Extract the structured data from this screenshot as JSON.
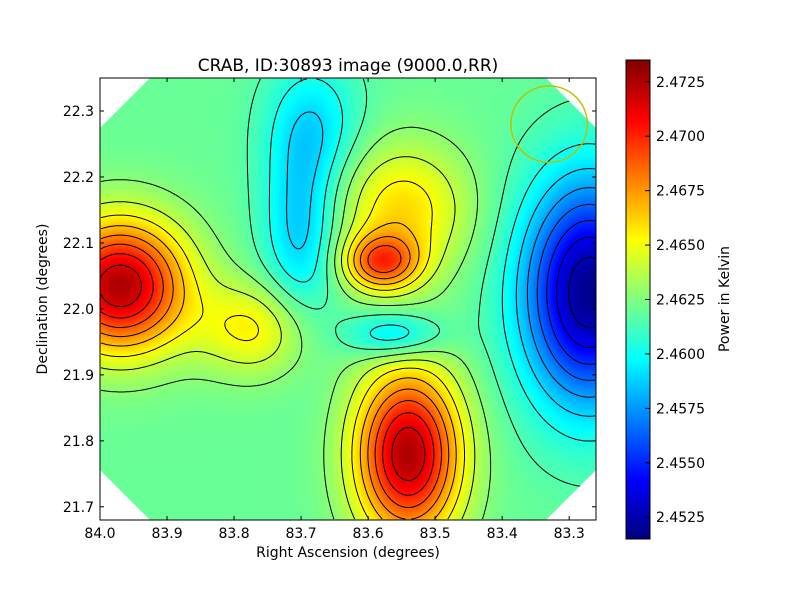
{
  "chart_data": {
    "type": "heatmap",
    "title": "CRAB, ID:30893 image (9000.0,RR)",
    "xlabel": "Right Ascension (degrees)",
    "ylabel": "Declination (degrees)",
    "xlim": [
      84.0,
      83.26
    ],
    "ylim": [
      21.68,
      22.35
    ],
    "x_ticks": [
      {
        "value": 84.0,
        "label": "84.0"
      },
      {
        "value": 83.9,
        "label": "83.9"
      },
      {
        "value": 83.8,
        "label": "83.8"
      },
      {
        "value": 83.7,
        "label": "83.7"
      },
      {
        "value": 83.6,
        "label": "83.6"
      },
      {
        "value": 83.5,
        "label": "83.5"
      },
      {
        "value": 83.4,
        "label": "83.4"
      },
      {
        "value": 83.3,
        "label": "83.3"
      }
    ],
    "y_ticks": [
      {
        "value": 21.7,
        "label": "21.7"
      },
      {
        "value": 21.8,
        "label": "21.8"
      },
      {
        "value": 21.9,
        "label": "21.9"
      },
      {
        "value": 22.0,
        "label": "22.0"
      },
      {
        "value": 22.1,
        "label": "22.1"
      },
      {
        "value": 22.2,
        "label": "22.2"
      },
      {
        "value": 22.3,
        "label": "22.3"
      }
    ],
    "colorbar": {
      "label": "Power in Kelvin",
      "colormap": "jet",
      "range": [
        2.4515,
        2.4735
      ],
      "ticks": [
        {
          "value": 2.4525,
          "label": "2.4525"
        },
        {
          "value": 2.455,
          "label": "2.4550"
        },
        {
          "value": 2.4575,
          "label": "2.4575"
        },
        {
          "value": 2.46,
          "label": "2.4600"
        },
        {
          "value": 2.4625,
          "label": "2.4625"
        },
        {
          "value": 2.465,
          "label": "2.4650"
        },
        {
          "value": 2.4675,
          "label": "2.4675"
        },
        {
          "value": 2.47,
          "label": "2.4700"
        },
        {
          "value": 2.4725,
          "label": "2.4725"
        }
      ]
    },
    "background_value": 2.462,
    "features": [
      {
        "kind": "max",
        "ra": 83.97,
        "dec": 22.035,
        "value": 2.4725,
        "sx": 0.07,
        "sy": 0.07
      },
      {
        "kind": "max",
        "ra": 83.77,
        "dec": 21.97,
        "value": 2.4655,
        "sx": 0.06,
        "sy": 0.05
      },
      {
        "kind": "max",
        "ra": 83.54,
        "dec": 21.78,
        "value": 2.4725,
        "sx": 0.055,
        "sy": 0.09
      },
      {
        "kind": "max",
        "ra": 83.55,
        "dec": 22.15,
        "value": 2.466,
        "sx": 0.07,
        "sy": 0.07
      },
      {
        "kind": "max",
        "ra": 83.58,
        "dec": 22.07,
        "value": 2.4682,
        "sx": 0.04,
        "sy": 0.03
      },
      {
        "kind": "min",
        "ra": 83.27,
        "dec": 22.025,
        "value": 2.4518,
        "sx": 0.07,
        "sy": 0.12
      },
      {
        "kind": "min",
        "ra": 83.7,
        "dec": 22.12,
        "value": 2.4585,
        "sx": 0.04,
        "sy": 0.1
      },
      {
        "kind": "min",
        "ra": 83.68,
        "dec": 22.28,
        "value": 2.4595,
        "sx": 0.05,
        "sy": 0.07
      },
      {
        "kind": "min",
        "ra": 83.56,
        "dec": 21.96,
        "value": 2.4585,
        "sx": 0.05,
        "sy": 0.025
      }
    ],
    "beam": {
      "ra": 83.33,
      "dec": 22.28,
      "radius_deg": 0.057,
      "color": "#bfbf00"
    },
    "contour_color": "#000000",
    "outside_color": "#ffffff",
    "frame_color": "#000000"
  }
}
